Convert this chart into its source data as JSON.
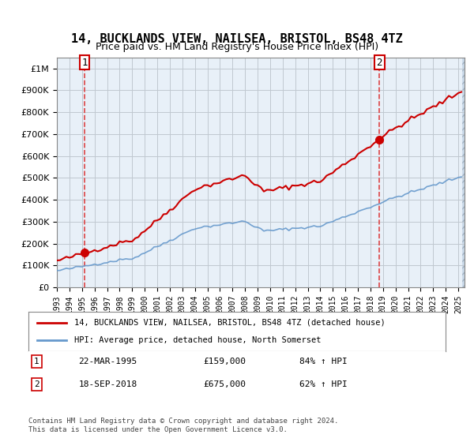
{
  "title": "14, BUCKLANDS VIEW, NAILSEA, BRISTOL, BS48 4TZ",
  "subtitle": "Price paid vs. HM Land Registry's House Price Index (HPI)",
  "legend_line1": "14, BUCKLANDS VIEW, NAILSEA, BRISTOL, BS48 4TZ (detached house)",
  "legend_line2": "HPI: Average price, detached house, North Somerset",
  "annotation1_label": "1",
  "annotation1_date": "22-MAR-1995",
  "annotation1_price": "£159,000",
  "annotation1_hpi": "84% ↑ HPI",
  "annotation2_label": "2",
  "annotation2_date": "18-SEP-2018",
  "annotation2_price": "£675,000",
  "annotation2_hpi": "62% ↑ HPI",
  "footer": "Contains HM Land Registry data © Crown copyright and database right 2024.\nThis data is licensed under the Open Government Licence v3.0.",
  "sale1_year": 1995.22,
  "sale1_value": 159000,
  "sale2_year": 2018.72,
  "sale2_value": 675000,
  "hatch_color": "#c8d8e8",
  "grid_color": "#c0c8d0",
  "plot_bg": "#e8f0f8",
  "hatch_bg": "#d0dce8",
  "red_line_color": "#cc0000",
  "blue_line_color": "#6699cc",
  "dashed_line_color": "#dd4444",
  "ylim_max": 1050000,
  "ylim_min": 0
}
